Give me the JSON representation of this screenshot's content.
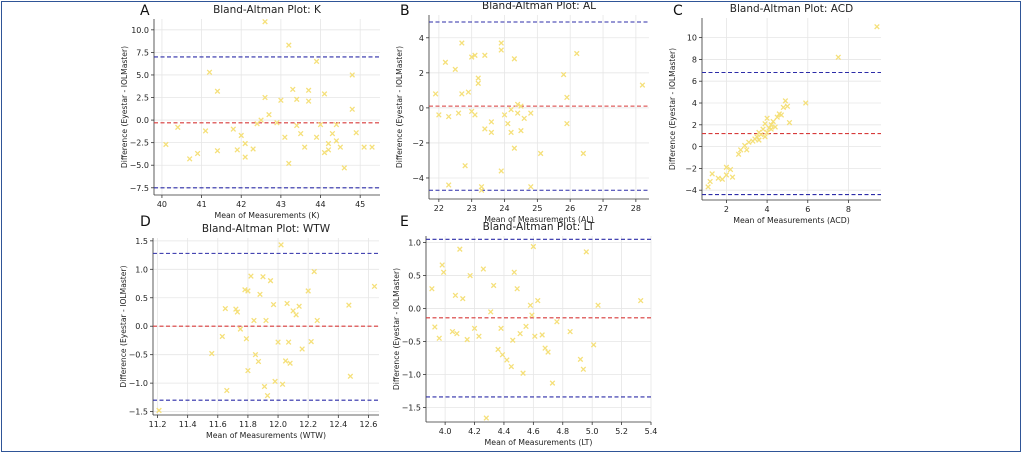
{
  "chart_data": [
    {
      "id": "K",
      "panel_label": "A",
      "type": "scatter",
      "title": "Bland-Altman Plot: K",
      "xlabel": "Mean of Measurements (K)",
      "ylabel": "Difference (Eyestar - IOLMaster)",
      "xlim": [
        39.8,
        45.5
      ],
      "ylim": [
        -8.3,
        11.2
      ],
      "xticks": [
        40,
        41,
        42,
        43,
        44,
        45
      ],
      "yticks": [
        -7.5,
        -5.0,
        -2.5,
        0.0,
        2.5,
        5.0,
        7.5,
        10.0
      ],
      "ytick_labels": [
        "−7.5",
        "−5.0",
        "−2.5",
        "0.0",
        "2.5",
        "5.0",
        "7.5",
        "10.0"
      ],
      "xtick_labels": [
        "40",
        "41",
        "42",
        "43",
        "44",
        "45"
      ],
      "mean_line": -0.3,
      "upper_loa": 7.0,
      "lower_loa": -7.5,
      "points": [
        [
          40.1,
          -2.7
        ],
        [
          40.4,
          -0.8
        ],
        [
          40.7,
          -4.3
        ],
        [
          40.9,
          -3.7
        ],
        [
          41.1,
          -1.2
        ],
        [
          41.2,
          5.3
        ],
        [
          41.4,
          3.2
        ],
        [
          41.4,
          -3.4
        ],
        [
          41.9,
          -3.3
        ],
        [
          42.0,
          -1.7
        ],
        [
          42.1,
          -2.6
        ],
        [
          42.1,
          -4.1
        ],
        [
          42.3,
          -3.2
        ],
        [
          42.4,
          -0.4
        ],
        [
          42.5,
          0.0
        ],
        [
          42.6,
          10.9
        ],
        [
          42.6,
          2.5
        ],
        [
          42.7,
          0.6
        ],
        [
          42.9,
          -0.3
        ],
        [
          43.0,
          2.2
        ],
        [
          43.1,
          -1.9
        ],
        [
          43.2,
          8.3
        ],
        [
          43.2,
          -4.8
        ],
        [
          43.3,
          3.4
        ],
        [
          43.4,
          2.3
        ],
        [
          43.4,
          -0.6
        ],
        [
          43.5,
          -1.5
        ],
        [
          43.6,
          -3.0
        ],
        [
          43.7,
          3.3
        ],
        [
          43.7,
          2.1
        ],
        [
          43.9,
          -1.9
        ],
        [
          43.9,
          6.5
        ],
        [
          44.0,
          -0.5
        ],
        [
          44.1,
          -3.6
        ],
        [
          44.1,
          2.9
        ],
        [
          44.2,
          -3.3
        ],
        [
          44.3,
          -1.5
        ],
        [
          44.4,
          -0.5
        ],
        [
          44.4,
          -2.3
        ],
        [
          44.5,
          -3.0
        ],
        [
          44.6,
          -5.3
        ],
        [
          44.8,
          5.0
        ],
        [
          44.8,
          1.2
        ],
        [
          44.9,
          -1.4
        ],
        [
          45.1,
          -3.0
        ],
        [
          45.3,
          -3.0
        ],
        [
          44.2,
          -2.6
        ],
        [
          41.8,
          -1.0
        ]
      ]
    },
    {
      "id": "AL",
      "panel_label": "B",
      "type": "scatter",
      "title": "Bland-Altman Plot: AL",
      "xlabel": "Mean of Measurements (AL)",
      "ylabel": "Difference (Eyestar - IOLMaster)",
      "xlim": [
        21.7,
        28.4
      ],
      "ylim": [
        -5.2,
        5.3
      ],
      "xticks": [
        22,
        23,
        24,
        25,
        26,
        27,
        28
      ],
      "yticks": [
        -4,
        -2,
        0,
        2,
        4
      ],
      "ytick_labels": [
        "−4",
        "−2",
        "0",
        "2",
        "4"
      ],
      "xtick_labels": [
        "22",
        "23",
        "24",
        "25",
        "26",
        "27",
        "28"
      ],
      "mean_line": 0.1,
      "upper_loa": 4.9,
      "lower_loa": -4.7,
      "points": [
        [
          21.9,
          0.8
        ],
        [
          22.0,
          -0.4
        ],
        [
          22.2,
          2.6
        ],
        [
          22.3,
          -0.5
        ],
        [
          22.3,
          -4.4
        ],
        [
          22.5,
          2.2
        ],
        [
          22.6,
          -0.3
        ],
        [
          22.7,
          0.8
        ],
        [
          22.7,
          3.7
        ],
        [
          22.8,
          -3.3
        ],
        [
          22.9,
          0.9
        ],
        [
          23.0,
          2.9
        ],
        [
          23.1,
          3.0
        ],
        [
          23.1,
          -0.4
        ],
        [
          23.2,
          1.7
        ],
        [
          23.2,
          1.4
        ],
        [
          23.3,
          -4.7
        ],
        [
          23.3,
          -4.5
        ],
        [
          23.4,
          3.0
        ],
        [
          23.4,
          -1.2
        ],
        [
          23.6,
          -1.4
        ],
        [
          23.6,
          -0.8
        ],
        [
          23.9,
          3.3
        ],
        [
          23.9,
          3.7
        ],
        [
          23.9,
          -3.6
        ],
        [
          24.0,
          -0.4
        ],
        [
          24.1,
          -0.9
        ],
        [
          24.2,
          -1.4
        ],
        [
          24.2,
          -0.1
        ],
        [
          24.3,
          -2.3
        ],
        [
          24.3,
          2.8
        ],
        [
          24.4,
          -0.3
        ],
        [
          24.4,
          0.2
        ],
        [
          24.5,
          -1.3
        ],
        [
          24.6,
          -0.6
        ],
        [
          24.8,
          -0.3
        ],
        [
          24.8,
          -4.5
        ],
        [
          25.1,
          -2.6
        ],
        [
          25.8,
          1.9
        ],
        [
          25.9,
          0.6
        ],
        [
          25.9,
          -0.9
        ],
        [
          26.2,
          3.1
        ],
        [
          26.4,
          -2.6
        ],
        [
          28.2,
          1.3
        ],
        [
          24.5,
          0.1
        ],
        [
          23.0,
          -0.2
        ]
      ]
    },
    {
      "id": "ACD",
      "panel_label": "C",
      "type": "scatter",
      "title": "Bland-Altman Plot: ACD",
      "xlabel": "Mean of Measurements (ACD)",
      "ylabel": "Difference (Eyestar - IOLMaster)",
      "xlim": [
        0.8,
        9.6
      ],
      "ylim": [
        -4.9,
        11.8
      ],
      "xticks": [
        2,
        4,
        6,
        8
      ],
      "yticks": [
        -4,
        -2,
        0,
        2,
        4,
        6,
        8,
        10
      ],
      "ytick_labels": [
        "−4",
        "−2",
        "0",
        "2",
        "4",
        "6",
        "8",
        "10"
      ],
      "xtick_labels": [
        "2",
        "4",
        "6",
        "8"
      ],
      "mean_line": 1.2,
      "upper_loa": 6.8,
      "lower_loa": -4.4,
      "points": [
        [
          1.1,
          -3.7
        ],
        [
          1.2,
          -3.2
        ],
        [
          1.3,
          -2.5
        ],
        [
          1.6,
          -2.9
        ],
        [
          1.8,
          -3.0
        ],
        [
          2.0,
          -2.6
        ],
        [
          2.0,
          -1.9
        ],
        [
          2.2,
          -2.1
        ],
        [
          2.3,
          -2.8
        ],
        [
          2.6,
          -0.7
        ],
        [
          2.7,
          -0.3
        ],
        [
          2.9,
          0.1
        ],
        [
          3.0,
          -0.3
        ],
        [
          3.1,
          0.4
        ],
        [
          3.3,
          0.5
        ],
        [
          3.5,
          0.9
        ],
        [
          3.6,
          1.3
        ],
        [
          3.6,
          0.6
        ],
        [
          3.7,
          1.1
        ],
        [
          3.8,
          1.6
        ],
        [
          3.9,
          2.1
        ],
        [
          3.9,
          0.9
        ],
        [
          4.0,
          2.6
        ],
        [
          4.0,
          1.3
        ],
        [
          4.1,
          1.7
        ],
        [
          4.2,
          2.0
        ],
        [
          4.3,
          2.3
        ],
        [
          4.4,
          1.8
        ],
        [
          4.5,
          2.7
        ],
        [
          4.6,
          3.0
        ],
        [
          4.7,
          2.9
        ],
        [
          4.8,
          3.6
        ],
        [
          4.9,
          4.2
        ],
        [
          5.0,
          3.7
        ],
        [
          5.1,
          2.2
        ],
        [
          5.9,
          4.0
        ],
        [
          7.5,
          8.2
        ],
        [
          9.4,
          11.0
        ],
        [
          4.2,
          1.6
        ],
        [
          3.4,
          0.7
        ]
      ]
    },
    {
      "id": "WTW",
      "panel_label": "D",
      "type": "scatter",
      "title": "Bland-Altman Plot: WTW",
      "xlabel": "Mean of Measurements (WTW)",
      "ylabel": "Difference (Eyestar - IOLMaster)",
      "xlim": [
        11.17,
        12.67
      ],
      "ylim": [
        -1.56,
        1.55
      ],
      "xticks": [
        11.2,
        11.4,
        11.6,
        11.8,
        12.0,
        12.2,
        12.4,
        12.6
      ],
      "yticks": [
        -1.5,
        -1.0,
        -0.5,
        0.0,
        0.5,
        1.0,
        1.5
      ],
      "ytick_labels": [
        "−1.5",
        "−1.0",
        "−0.5",
        "0.0",
        "0.5",
        "1.0",
        "1.5"
      ],
      "xtick_labels": [
        "11.2",
        "11.4",
        "11.6",
        "11.8",
        "12.0",
        "12.2",
        "12.4",
        "12.6"
      ],
      "mean_line": 0.0,
      "upper_loa": 1.28,
      "lower_loa": -1.3,
      "points": [
        [
          11.21,
          -1.48
        ],
        [
          11.56,
          -0.48
        ],
        [
          11.63,
          -0.18
        ],
        [
          11.65,
          0.31
        ],
        [
          11.66,
          -1.13
        ],
        [
          11.72,
          0.3
        ],
        [
          11.73,
          0.25
        ],
        [
          11.75,
          -0.05
        ],
        [
          11.78,
          0.64
        ],
        [
          11.79,
          -0.22
        ],
        [
          11.8,
          0.62
        ],
        [
          11.8,
          -0.78
        ],
        [
          11.82,
          0.88
        ],
        [
          11.84,
          0.1
        ],
        [
          11.85,
          -0.5
        ],
        [
          11.87,
          -0.62
        ],
        [
          11.88,
          0.56
        ],
        [
          11.9,
          0.87
        ],
        [
          11.91,
          -1.06
        ],
        [
          11.92,
          0.1
        ],
        [
          11.93,
          -1.22
        ],
        [
          11.95,
          0.8
        ],
        [
          11.97,
          0.38
        ],
        [
          11.98,
          -0.97
        ],
        [
          12.0,
          -0.28
        ],
        [
          12.02,
          1.43
        ],
        [
          12.03,
          -1.02
        ],
        [
          12.05,
          -0.61
        ],
        [
          12.06,
          0.4
        ],
        [
          12.07,
          -0.28
        ],
        [
          12.1,
          0.27
        ],
        [
          12.12,
          0.2
        ],
        [
          12.14,
          0.35
        ],
        [
          12.16,
          -0.4
        ],
        [
          12.2,
          0.62
        ],
        [
          12.22,
          -0.27
        ],
        [
          12.24,
          0.96
        ],
        [
          12.26,
          0.1
        ],
        [
          12.47,
          0.37
        ],
        [
          12.48,
          -0.88
        ],
        [
          12.64,
          0.7
        ],
        [
          12.08,
          -0.65
        ]
      ]
    },
    {
      "id": "LT",
      "panel_label": "E",
      "type": "scatter",
      "title": "Bland-Altman Plot: LT",
      "xlabel": "Mean of Measurements (LT)",
      "ylabel": "Difference (Eyestar - IOLMaster)",
      "xlim": [
        3.87,
        5.4
      ],
      "ylim": [
        -1.72,
        1.1
      ],
      "xticks": [
        4.0,
        4.2,
        4.4,
        4.6,
        4.8,
        5.0,
        5.2,
        5.4
      ],
      "yticks": [
        -1.5,
        -1.0,
        -0.5,
        0.0,
        0.5,
        1.0
      ],
      "ytick_labels": [
        "−1.5",
        "−1.0",
        "−0.5",
        "0.0",
        "0.5",
        "1.0"
      ],
      "xtick_labels": [
        "4.0",
        "4.2",
        "4.4",
        "4.6",
        "4.8",
        "5.0",
        "5.2",
        "5.4"
      ],
      "mean_line": -0.14,
      "upper_loa": 1.05,
      "lower_loa": -1.34,
      "points": [
        [
          3.91,
          0.3
        ],
        [
          3.93,
          -0.28
        ],
        [
          3.96,
          -0.45
        ],
        [
          3.98,
          0.66
        ],
        [
          3.99,
          0.55
        ],
        [
          4.05,
          -0.35
        ],
        [
          4.07,
          0.2
        ],
        [
          4.08,
          -0.38
        ],
        [
          4.1,
          0.9
        ],
        [
          4.12,
          0.15
        ],
        [
          4.15,
          -0.47
        ],
        [
          4.17,
          0.5
        ],
        [
          4.2,
          -0.3
        ],
        [
          4.23,
          -0.42
        ],
        [
          4.26,
          0.6
        ],
        [
          4.28,
          -1.66
        ],
        [
          4.31,
          -0.05
        ],
        [
          4.33,
          0.35
        ],
        [
          4.36,
          -0.62
        ],
        [
          4.38,
          -0.3
        ],
        [
          4.39,
          -0.7
        ],
        [
          4.42,
          -0.78
        ],
        [
          4.45,
          -0.88
        ],
        [
          4.47,
          0.55
        ],
        [
          4.49,
          0.3
        ],
        [
          4.51,
          -0.38
        ],
        [
          4.53,
          -0.98
        ],
        [
          4.55,
          -0.27
        ],
        [
          4.58,
          0.05
        ],
        [
          4.59,
          -0.1
        ],
        [
          4.6,
          0.94
        ],
        [
          4.61,
          -0.42
        ],
        [
          4.63,
          0.12
        ],
        [
          4.66,
          -0.4
        ],
        [
          4.68,
          -0.6
        ],
        [
          4.7,
          -0.66
        ],
        [
          4.73,
          -1.13
        ],
        [
          4.76,
          -0.2
        ],
        [
          4.85,
          -0.35
        ],
        [
          4.92,
          -0.77
        ],
        [
          4.94,
          -0.92
        ],
        [
          4.96,
          0.86
        ],
        [
          5.01,
          -0.55
        ],
        [
          5.04,
          0.05
        ],
        [
          5.33,
          0.12
        ],
        [
          4.46,
          -0.48
        ]
      ]
    }
  ],
  "style": {
    "point_color": "#f5e07a",
    "mean_color": "#d73a3a",
    "loa_color": "#2c2ca8",
    "grid_color": "#e6e6e6",
    "frame_color": "#2f5597"
  }
}
